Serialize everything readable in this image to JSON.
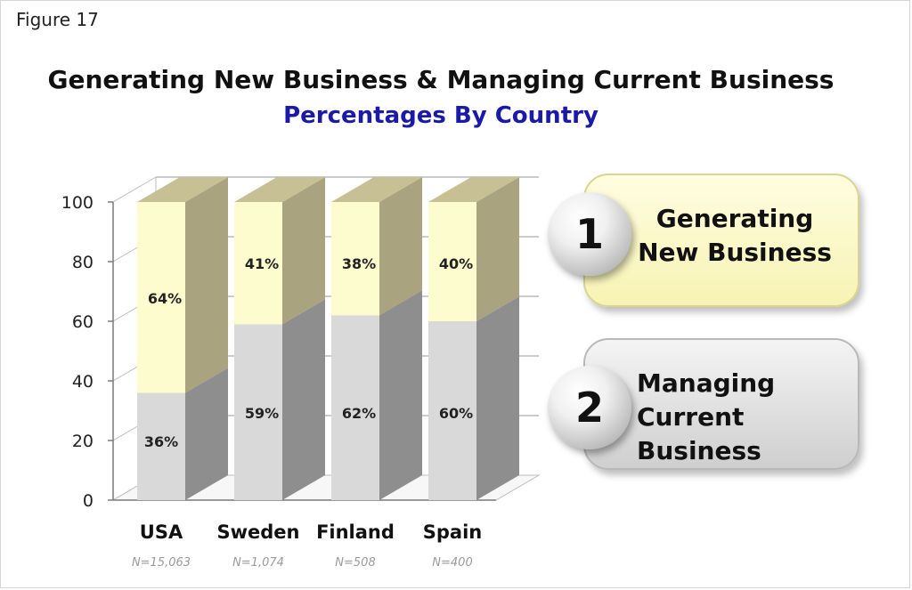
{
  "figure_label": "Figure 17",
  "chart_data": {
    "type": "bar",
    "stacked": true,
    "title": "Generating New Business & Managing Current Business",
    "subtitle": "Percentages By Country",
    "categories": [
      "USA",
      "Sweden",
      "Finland",
      "Spain"
    ],
    "sample_sizes": [
      "N=15,063",
      "N=1,074",
      "N=508",
      "N=400"
    ],
    "series": [
      {
        "name": "Managing Current Business",
        "values": [
          36,
          59,
          62,
          60
        ],
        "labels": [
          "36%",
          "59%",
          "62%",
          "60%"
        ],
        "color": "#d9d9d9"
      },
      {
        "name": "Generating New Business",
        "values": [
          64,
          41,
          38,
          40
        ],
        "labels": [
          "64%",
          "41%",
          "38%",
          "40%"
        ],
        "color": "#fdfccf"
      }
    ],
    "yticks": [
      "0",
      "20",
      "40",
      "60",
      "80",
      "100"
    ],
    "ylim": [
      0,
      100
    ],
    "grid": true,
    "legend_placement": "right"
  },
  "legend": {
    "item1": {
      "number": "1",
      "line1": "Generating",
      "line2": "New Business"
    },
    "item2": {
      "number": "2",
      "line1": "Managing",
      "line2": "Current Business"
    }
  },
  "colors": {
    "new_business_front": "#fdfccf",
    "new_business_side": "#aaa37f",
    "current_business_front": "#d9d9d9",
    "current_business_side": "#8e8e8e",
    "subtitle": "#1a1aa6"
  }
}
